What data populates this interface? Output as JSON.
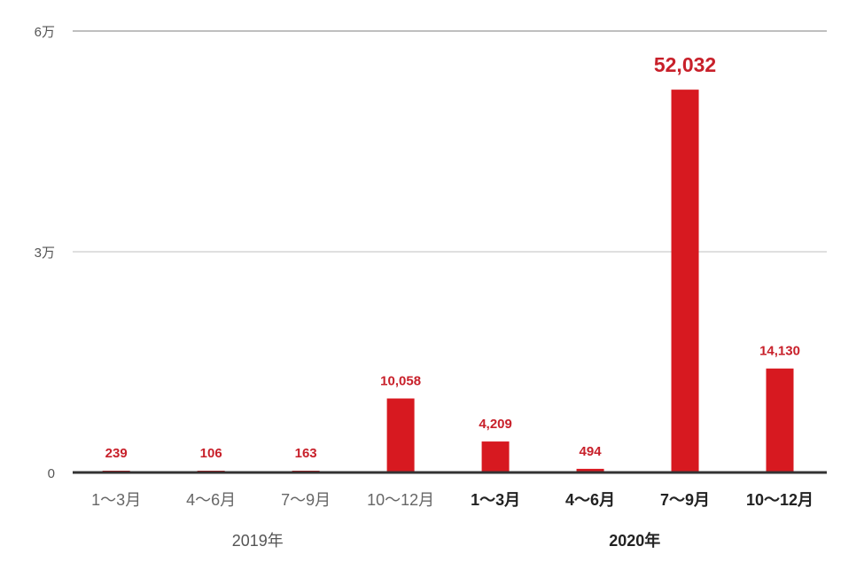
{
  "chart_data": {
    "type": "bar",
    "title": "",
    "xlabel": "",
    "ylabel": "",
    "ylim": [
      0,
      60000
    ],
    "yticks": [
      {
        "value": 0,
        "label": "0"
      },
      {
        "value": 30000,
        "label": "3万"
      },
      {
        "value": 60000,
        "label": "6万"
      }
    ],
    "categories": [
      "1〜3月",
      "4〜6月",
      "7〜9月",
      "10〜12月",
      "1〜3月",
      "4〜6月",
      "7〜9月",
      "10〜12月"
    ],
    "groups": [
      {
        "label": "2019年",
        "start": 0,
        "end": 3
      },
      {
        "label": "2020年",
        "start": 4,
        "end": 7
      }
    ],
    "values": [
      239,
      106,
      163,
      10058,
      4209,
      494,
      52032,
      14130
    ],
    "value_labels": [
      "239",
      "106",
      "163",
      "10,058",
      "4,209",
      "494",
      "52,032",
      "14,130"
    ],
    "highlight_index": 6,
    "grid": true,
    "legend": "none",
    "colors": {
      "bar": "#d71920",
      "label": "#c8202a",
      "axis": "#333333",
      "grid": "#cccccc"
    }
  }
}
